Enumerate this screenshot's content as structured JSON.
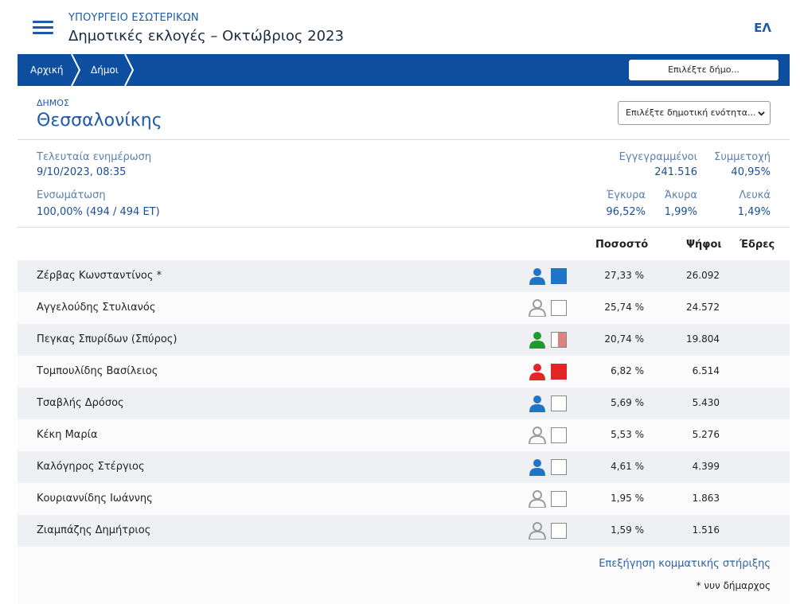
{
  "header": {
    "ministry": "ΥΠΟΥΡΓΕΙΟ ΕΣΩΤΕΡΙΚΩΝ",
    "title": "Δημοτικές εκλογές – Οκτώβριος 2023",
    "language": "ΕΛ",
    "menu_icon": "hamburger-menu-icon"
  },
  "breadcrumb": {
    "items": [
      "Αρχική",
      "Δήμοι"
    ],
    "municipality_select_placeholder": "Επιλέξτε δήμο..."
  },
  "municipality": {
    "label": "ΔΗΜΟΣ",
    "name": "Θεσσαλονίκης",
    "unit_select_placeholder": "Επιλέξτε δημοτική ενότητα..."
  },
  "stats": {
    "last_update_label": "Τελευταία ενημέρωση",
    "last_update_value": "9/10/2023, 08:35",
    "integration_label": "Ενσωμάτωση",
    "integration_value": "100,00% (494 / 494 ΕΤ)",
    "registered_label": "Εγγεγραμμένοι",
    "registered_value": "241.516",
    "turnout_label": "Συμμετοχή",
    "turnout_value": "40,95%",
    "valid_label": "Έγκυρα",
    "valid_value": "96,52%",
    "invalid_label": "Άκυρα",
    "invalid_value": "1,99%",
    "blank_label": "Λευκά",
    "blank_value": "1,49%"
  },
  "table": {
    "headers": {
      "percent": "Ποσοστό",
      "votes": "Ψήφοι",
      "seats": "Έδρες"
    },
    "rows": [
      {
        "name": "Ζέρβας Κωνσταντίνος *",
        "percent": "27,33 %",
        "votes": "26.092",
        "seats": "",
        "person_color": "#1f74c6",
        "box_color": "#1f74c6"
      },
      {
        "name": "Αγγελούδης Στυλιανός",
        "percent": "25,74 %",
        "votes": "24.572",
        "seats": "",
        "person_color": "#9b9b9b",
        "box_color": ""
      },
      {
        "name": "Πεγκας Σπυρίδων (Σπύρος)",
        "percent": "20,74 %",
        "votes": "19.804",
        "seats": "",
        "person_color": "#1e9b2e",
        "box_color": "#e08080"
      },
      {
        "name": "Τομπουλίδης Βασίλειος",
        "percent": "6,82 %",
        "votes": "6.514",
        "seats": "",
        "person_color": "#e02626",
        "box_color": "#e02626"
      },
      {
        "name": "Τσαβλής Δρόσος",
        "percent": "5,69 %",
        "votes": "5.430",
        "seats": "",
        "person_color": "#1f74c6",
        "box_color": ""
      },
      {
        "name": "Κέκη Μαρία",
        "percent": "5,53 %",
        "votes": "5.276",
        "seats": "",
        "person_color": "#9b9b9b",
        "box_color": ""
      },
      {
        "name": "Καλόγηρος Στέργιος",
        "percent": "4,61 %",
        "votes": "4.399",
        "seats": "",
        "person_color": "#1f74c6",
        "box_color": ""
      },
      {
        "name": "Κουριαννίδης Ιωάννης",
        "percent": "1,95 %",
        "votes": "1.863",
        "seats": "",
        "person_color": "#9b9b9b",
        "box_color": ""
      },
      {
        "name": "Ζιαμπάζης Δημήτριος",
        "percent": "1,59 %",
        "votes": "1.516",
        "seats": "",
        "person_color": "#9b9b9b",
        "box_color": ""
      }
    ]
  },
  "footer": {
    "explain_link": "Επεξήγηση κομματικής στήριξης",
    "note": "* νυν δήμαρχος"
  },
  "colors": {
    "accent": "#1f5aa6",
    "navbar": "#0d4f9e"
  }
}
